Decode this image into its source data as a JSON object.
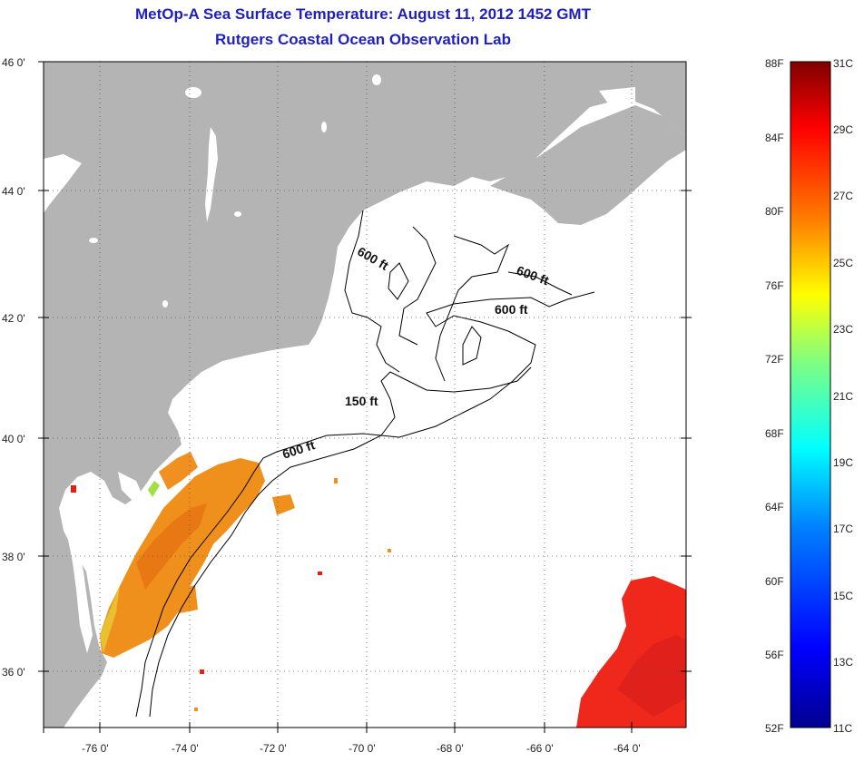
{
  "title": {
    "line1": "MetOp-A Sea Surface Temperature:  August 11, 2012 1452 GMT",
    "line2": "Rutgers Coastal Ocean Observation Lab"
  },
  "map": {
    "lon_ticks": [
      "-76 0'",
      "-74 0'",
      "-72 0'",
      "-70 0'",
      "-68 0'",
      "-66 0'",
      "-64 0'"
    ],
    "lat_ticks": [
      "46 0'",
      "44 0'",
      "42 0'",
      "40 0'",
      "38 0'",
      "36 0'"
    ],
    "contour_labels": [
      "600 ft",
      "600 ft",
      "600 ft",
      "150 ft",
      "600 ft"
    ],
    "colors": {
      "land": "#b4b4b4",
      "water": "#ffffff",
      "contour": "#000000"
    }
  },
  "colorbar": {
    "fahrenheit_labels": [
      "88F",
      "84F",
      "80F",
      "76F",
      "72F",
      "68F",
      "64F",
      "60F",
      "56F",
      "52F"
    ],
    "celsius_labels": [
      "31C",
      "29C",
      "27C",
      "25C",
      "23C",
      "21C",
      "19C",
      "17C",
      "15C",
      "13C",
      "11C"
    ],
    "stops": [
      "#00008f",
      "#0000ff",
      "#0080ff",
      "#00ffff",
      "#80ff80",
      "#ffff00",
      "#ff8000",
      "#ff0000",
      "#800000"
    ]
  }
}
